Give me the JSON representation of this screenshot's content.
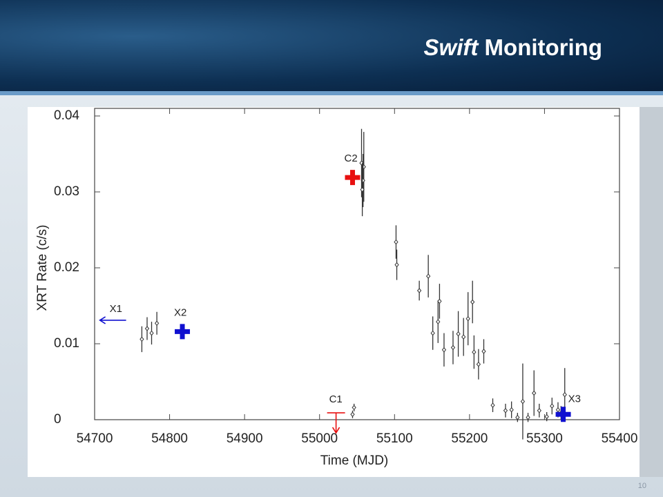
{
  "slide": {
    "title_italic": "Swift",
    "title": "Monitoring",
    "page_number": "10"
  },
  "chart_data": {
    "type": "scatter",
    "x_label": "Time (MJD)",
    "y_label": "XRT Rate (c/s)",
    "xlim": [
      54700,
      55400
    ],
    "ylim": [
      0,
      0.041
    ],
    "xticks": [
      54700,
      54800,
      54900,
      55000,
      55100,
      55200,
      55300,
      55400
    ],
    "yticks": [
      0,
      0.01,
      0.02,
      0.03,
      0.04
    ],
    "series": [
      {
        "color": "#333333",
        "x": [
          54763,
          54770,
          54776,
          54783,
          55044,
          55046,
          55056,
          55059,
          55058,
          55057,
          55102,
          55103,
          55133,
          55145,
          55151,
          55158,
          55160,
          55166,
          55178,
          55185,
          55192,
          55198,
          55204,
          55206,
          55212,
          55219,
          55231,
          55248,
          55256,
          55264,
          55271,
          55278,
          55286,
          55293,
          55303,
          55310,
          55318,
          55322,
          55327
        ],
        "values": [
          0.0106,
          0.012,
          0.0114,
          0.0127,
          0.0007,
          0.0016,
          0.0338,
          0.0333,
          0.0315,
          0.0303,
          0.0234,
          0.0204,
          0.017,
          0.0189,
          0.0114,
          0.0129,
          0.0156,
          0.0092,
          0.0095,
          0.0113,
          0.0109,
          0.0133,
          0.0155,
          0.0089,
          0.0073,
          0.009,
          0.0019,
          0.0012,
          0.0013,
          0.0003,
          0.0024,
          0.0003,
          0.0035,
          0.0012,
          0.0004,
          0.0018,
          0.0013,
          0.0009,
          0.0033
        ],
        "errors": [
          0.0017,
          0.0015,
          0.0015,
          0.0015,
          0.0005,
          0.0005,
          0.0045,
          0.0046,
          0.0035,
          0.0035,
          0.0022,
          0.002,
          0.0013,
          0.0028,
          0.0022,
          0.0028,
          0.0023,
          0.0022,
          0.0022,
          0.003,
          0.0025,
          0.0035,
          0.0028,
          0.0022,
          0.002,
          0.0016,
          0.0009,
          0.0009,
          0.0011,
          0.0006,
          0.005,
          0.0006,
          0.003,
          0.0009,
          0.0006,
          0.0011,
          0.001,
          0.0009,
          0.0035
        ]
      }
    ],
    "markers": [
      {
        "label": "X1",
        "x": 54742,
        "y": 0.0131,
        "color": "#1010d0",
        "shape": "arrow-left"
      },
      {
        "label": "X2",
        "x": 54817,
        "y": 0.0116,
        "color": "#1010d0",
        "shape": "cross"
      },
      {
        "label": "C2",
        "x": 55044,
        "y": 0.0319,
        "color": "#e81010",
        "shape": "cross"
      },
      {
        "label": "C1",
        "x": 55022,
        "y": 0.0009,
        "color": "#e81010",
        "shape": "arrow-down"
      },
      {
        "label": "X3",
        "x": 55325,
        "y": 0.0007,
        "color": "#1010d0",
        "shape": "cross"
      }
    ]
  }
}
